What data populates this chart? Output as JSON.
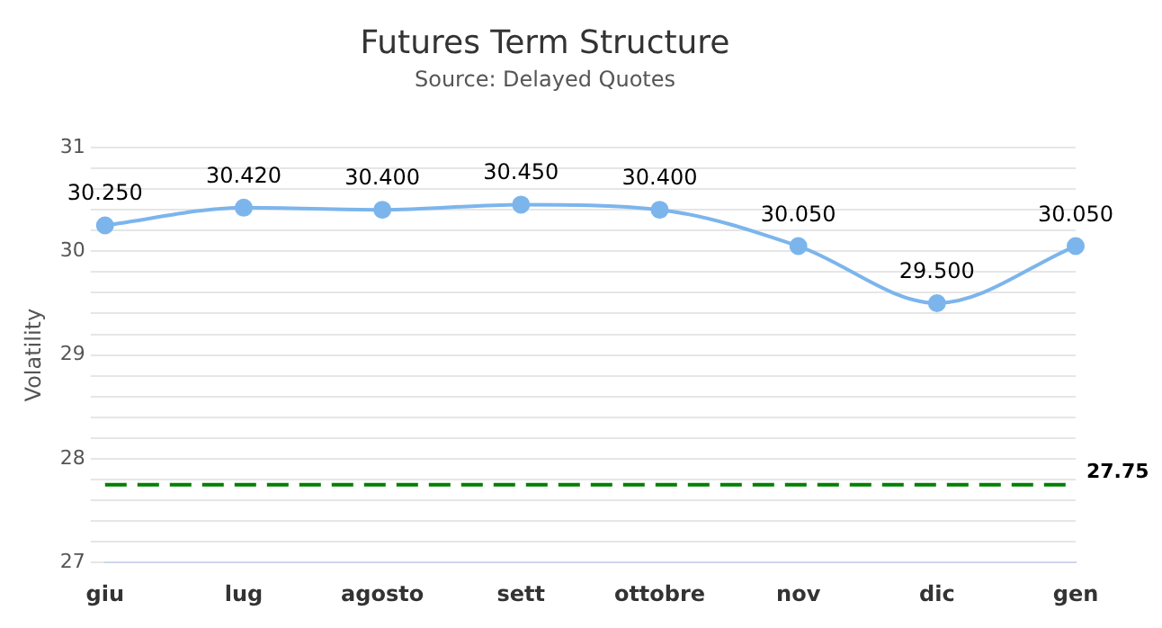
{
  "chart_data": {
    "type": "line",
    "title": "Futures Term Structure",
    "subtitle": "Source: Delayed Quotes",
    "ylabel": "Volatility",
    "categories": [
      "giu",
      "lug",
      "agosto",
      "sett",
      "ottobre",
      "nov",
      "dic",
      "gen"
    ],
    "series": [
      {
        "color": "#7cb5ec",
        "values": [
          30.25,
          30.42,
          30.4,
          30.45,
          30.4,
          30.05,
          29.5,
          30.05
        ],
        "value_labels": [
          "30.250",
          "30.420",
          "30.400",
          "30.450",
          "30.400",
          "30.050",
          "29.500",
          "30.050"
        ]
      }
    ],
    "ylim": [
      27,
      31
    ],
    "yticks": [
      27,
      {
        "value": 27.2,
        "label": null
      },
      {
        "value": 27.4,
        "label": null
      },
      {
        "value": 27.6,
        "label": null
      },
      {
        "value": 27.8,
        "label": null
      },
      28,
      {
        "value": 28.2,
        "label": null
      },
      {
        "value": 28.4,
        "label": null
      },
      {
        "value": 28.6,
        "label": null
      },
      {
        "value": 28.8,
        "label": null
      },
      29,
      {
        "value": 29.2,
        "label": null
      },
      {
        "value": 29.4,
        "label": null
      },
      {
        "value": 29.6,
        "label": null
      },
      {
        "value": 29.8,
        "label": null
      },
      30,
      {
        "value": 30.2,
        "label": null
      },
      {
        "value": 30.4,
        "label": null
      },
      {
        "value": 30.6,
        "label": null
      },
      {
        "value": 30.8,
        "label": null
      },
      31
    ],
    "ref_lines": [
      {
        "axis": "y",
        "value": 27.75,
        "label": "27.75",
        "color": "#008000",
        "line_style": "dashed"
      }
    ],
    "grid": "y",
    "legend": false,
    "marker": "circle",
    "line_style": "solid"
  }
}
